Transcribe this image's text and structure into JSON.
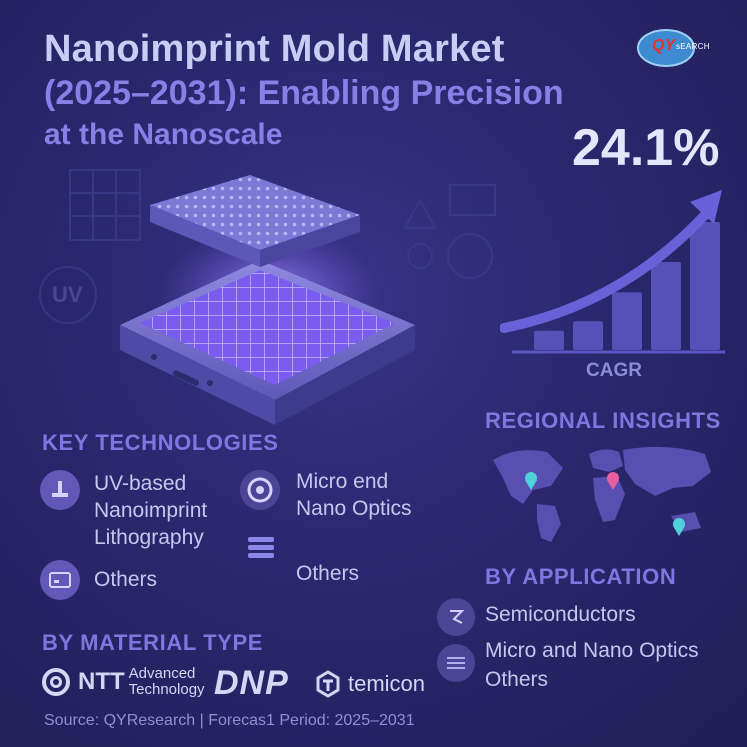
{
  "title": {
    "line1": "Nanoimprint Mold Market",
    "line2": "(2025–2031): Enabling Precision",
    "line3": "at the Nanoscale"
  },
  "logo": {
    "mark": "QY",
    "text": "sEARCH"
  },
  "cagr": {
    "value": "24.1%",
    "label": "CAGR",
    "bars_relative": [
      0.12,
      0.18,
      0.36,
      0.55,
      0.8
    ]
  },
  "key_technologies": {
    "heading": "KEY TECHNOLOGIES",
    "items": [
      {
        "label": "UV-based Nanoimprint Lithography",
        "icon": "uv-lamp-icon"
      },
      {
        "label": "Micro end Nano Optics",
        "icon": "lens-icon"
      },
      {
        "label": "Others",
        "icon": "card-icon"
      },
      {
        "label": "Others",
        "icon": "stack-icon"
      }
    ]
  },
  "regional": {
    "heading": "REGIONAL INSIGHTS"
  },
  "by_application": {
    "heading": "BY APPLICATION",
    "items": [
      {
        "label": "Semiconductors",
        "icon": "chip-icon"
      },
      {
        "label": "Micro and Nano Optics",
        "icon": "optics-icon"
      },
      {
        "label": "Others",
        "icon": ""
      }
    ]
  },
  "by_material": {
    "heading": "BY MATERIAL TYPE",
    "brands": {
      "ntt_name": "NTT",
      "ntt_sub1": "Advanced",
      "ntt_sub2": "Technology",
      "dnp": "DNP",
      "temicon": "temicon"
    }
  },
  "source": "Source: QYResearch | Forecas1 Period: 2025–2031",
  "colors": {
    "accent": "#7f76e0",
    "background": "#2c2870",
    "logo_red": "#e8332c",
    "map_pin_cyan": "#4fd1d9",
    "map_pin_pink": "#e85fa0"
  }
}
